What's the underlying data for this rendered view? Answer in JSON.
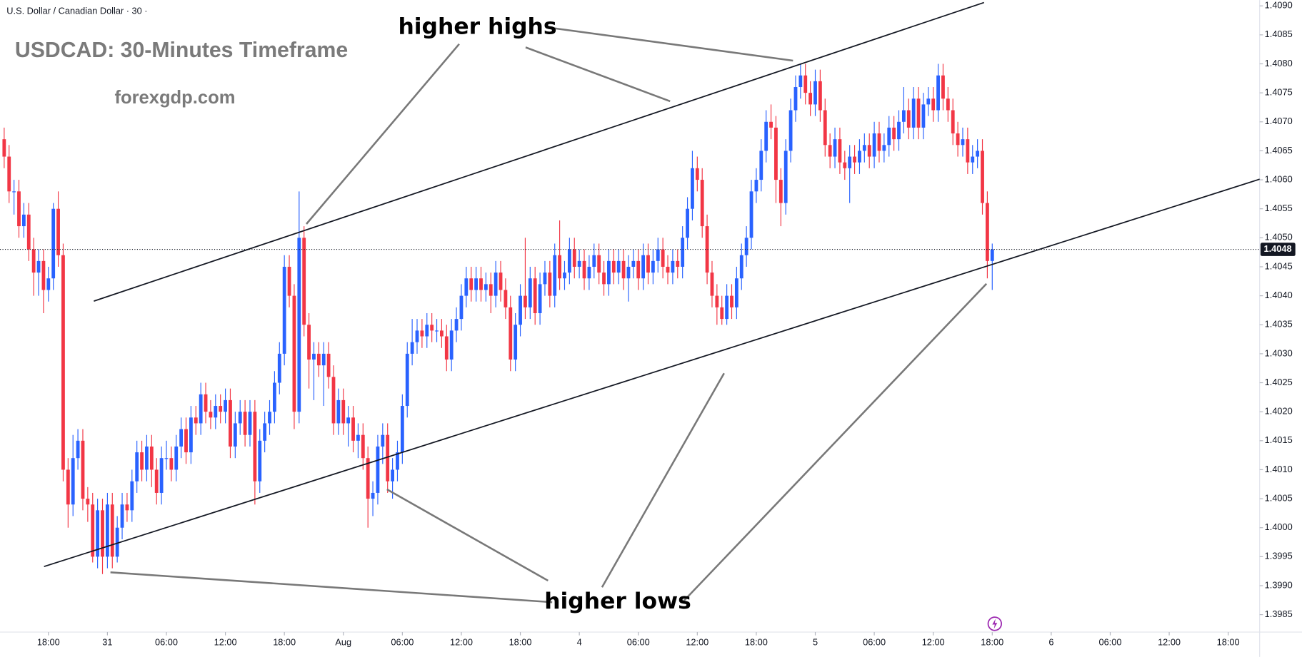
{
  "chart_data": {
    "type": "candlestick",
    "symbol_label": "U.S. Dollar / Canadian Dollar · 30 ·",
    "title": "USDCAD: 30-Minutes Timeframe",
    "subtitle": "forexgdp.com",
    "annotations": [
      "higher highs",
      "higher lows"
    ],
    "up_color": "#2962ff",
    "down_color": "#f23645",
    "grid": false,
    "last_price": 1.4048,
    "ylim": [
      1.3982,
      1.4091
    ],
    "yticks": [
      {
        "value": 1.399,
        "label": "1.3990"
      },
      1.3985,
      {
        "value": 1.4,
        "label": "1.4000"
      },
      1.3995,
      {
        "value": 1.401,
        "label": "1.4010"
      },
      1.4005,
      {
        "value": 1.402,
        "label": "1.4020"
      },
      1.4015,
      {
        "value": 1.403,
        "label": "1.4030"
      },
      1.4025,
      {
        "value": 1.404,
        "label": "1.4040"
      },
      1.4035,
      {
        "value": 1.405,
        "label": "1.4050"
      },
      1.4045,
      {
        "value": 1.406,
        "label": "1.4060"
      },
      1.4055,
      {
        "value": 1.407,
        "label": "1.4070"
      },
      1.4065,
      {
        "value": 1.408,
        "label": "1.4080"
      },
      1.4075,
      {
        "value": 1.409,
        "label": "1.4090"
      },
      1.4085
    ],
    "xlim": [
      -0.85,
      255.4
    ],
    "xticks": [
      {
        "value": 9,
        "label": "18:00"
      },
      {
        "value": 21,
        "label": "31"
      },
      {
        "value": 33,
        "label": "06:00"
      },
      {
        "value": 45,
        "label": "12:00"
      },
      {
        "value": 57,
        "label": "18:00"
      },
      {
        "value": 69,
        "label": "Aug"
      },
      {
        "value": 81,
        "label": "06:00"
      },
      {
        "value": 93,
        "label": "12:00"
      },
      {
        "value": 105,
        "label": "18:00"
      },
      {
        "value": 117,
        "label": "4"
      },
      {
        "value": 129,
        "label": "06:00"
      },
      {
        "value": 141,
        "label": "12:00"
      },
      {
        "value": 153,
        "label": "18:00"
      },
      {
        "value": 165,
        "label": "5"
      },
      {
        "value": 177,
        "label": "06:00"
      },
      {
        "value": 189,
        "label": "12:00"
      },
      {
        "value": 201,
        "label": "18:00"
      },
      {
        "value": 213,
        "label": "6"
      },
      {
        "value": 225,
        "label": "06:00"
      },
      {
        "value": 237,
        "label": "12:00"
      },
      {
        "value": 249,
        "label": "18:00"
      }
    ],
    "candles": [
      [
        1.4067,
        1.4069,
        1.4062,
        1.4064
      ],
      [
        1.4064,
        1.4066,
        1.4056,
        1.4058
      ],
      [
        1.4058,
        1.406,
        1.4054,
        1.4058
      ],
      [
        1.4058,
        1.406,
        1.405,
        1.4052
      ],
      [
        1.4052,
        1.4056,
        1.405,
        1.4054
      ],
      [
        1.4054,
        1.4056,
        1.4046,
        1.4048
      ],
      [
        1.4048,
        1.405,
        1.404,
        1.4044
      ],
      [
        1.4044,
        1.4048,
        1.404,
        1.4046
      ],
      [
        1.4046,
        1.4048,
        1.4037,
        1.4041
      ],
      [
        1.4041,
        1.4045,
        1.4039,
        1.4043
      ],
      [
        1.4043,
        1.4056,
        1.4041,
        1.4055
      ],
      [
        1.4055,
        1.4058,
        1.4045,
        1.4047
      ],
      [
        1.4047,
        1.4049,
        1.4008,
        1.401
      ],
      [
        1.401,
        1.4012,
        1.4,
        1.4004
      ],
      [
        1.4004,
        1.4016,
        1.4002,
        1.4012
      ],
      [
        1.4012,
        1.4017,
        1.401,
        1.4015
      ],
      [
        1.4015,
        1.4017,
        1.4003,
        1.4005
      ],
      [
        1.4005,
        1.4007,
        1.4001,
        1.4004
      ],
      [
        1.4004,
        1.4006,
        1.3994,
        1.3995
      ],
      [
        1.3995,
        1.4005,
        1.3993,
        1.4003
      ],
      [
        1.4003,
        1.4005,
        1.3992,
        1.3995
      ],
      [
        1.3995,
        1.4006,
        1.3993,
        1.4004
      ],
      [
        1.4004,
        1.4006,
        1.3993,
        1.3995
      ],
      [
        1.3995,
        1.4002,
        1.3994,
        1.4
      ],
      [
        1.4,
        1.4006,
        1.3998,
        1.4004
      ],
      [
        1.4004,
        1.4006,
        1.4001,
        1.4003
      ],
      [
        1.4003,
        1.401,
        1.4001,
        1.4008
      ],
      [
        1.4008,
        1.4015,
        1.4006,
        1.4013
      ],
      [
        1.4013,
        1.4015,
        1.4008,
        1.401
      ],
      [
        1.401,
        1.4016,
        1.4008,
        1.4014
      ],
      [
        1.4014,
        1.4016,
        1.4007,
        1.401
      ],
      [
        1.401,
        1.4012,
        1.4004,
        1.4006
      ],
      [
        1.4006,
        1.4014,
        1.4004,
        1.4012
      ],
      [
        1.4012,
        1.4015,
        1.401,
        1.4012
      ],
      [
        1.4012,
        1.4014,
        1.4008,
        1.401
      ],
      [
        1.401,
        1.4016,
        1.4008,
        1.4014
      ],
      [
        1.4014,
        1.4019,
        1.4012,
        1.4017
      ],
      [
        1.4017,
        1.4019,
        1.4011,
        1.4013
      ],
      [
        1.4013,
        1.4021,
        1.4011,
        1.4019
      ],
      [
        1.4019,
        1.4021,
        1.4016,
        1.4018
      ],
      [
        1.4018,
        1.4025,
        1.4016,
        1.4023
      ],
      [
        1.4023,
        1.4025,
        1.4018,
        1.402
      ],
      [
        1.402,
        1.4022,
        1.4017,
        1.4019
      ],
      [
        1.4019,
        1.4023,
        1.4017,
        1.4021
      ],
      [
        1.4021,
        1.4023,
        1.4018,
        1.402
      ],
      [
        1.402,
        1.4024,
        1.4018,
        1.4022
      ],
      [
        1.4022,
        1.4024,
        1.4012,
        1.4014
      ],
      [
        1.4014,
        1.402,
        1.4012,
        1.4018
      ],
      [
        1.4018,
        1.4022,
        1.4016,
        1.402
      ],
      [
        1.402,
        1.4022,
        1.4014,
        1.4016
      ],
      [
        1.4016,
        1.4022,
        1.4014,
        1.402
      ],
      [
        1.402,
        1.4022,
        1.4004,
        1.4008
      ],
      [
        1.4008,
        1.4017,
        1.4006,
        1.4015
      ],
      [
        1.4015,
        1.402,
        1.4013,
        1.4018
      ],
      [
        1.4018,
        1.4022,
        1.4016,
        1.402
      ],
      [
        1.402,
        1.4027,
        1.4018,
        1.4025
      ],
      [
        1.4025,
        1.4032,
        1.4023,
        1.403
      ],
      [
        1.403,
        1.4047,
        1.4028,
        1.4045
      ],
      [
        1.4045,
        1.4047,
        1.4038,
        1.404
      ],
      [
        1.404,
        1.4042,
        1.4017,
        1.402
      ],
      [
        1.402,
        1.4058,
        1.4018,
        1.405
      ],
      [
        1.405,
        1.4052,
        1.4033,
        1.4035
      ],
      [
        1.4035,
        1.4037,
        1.4024,
        1.4029
      ],
      [
        1.4029,
        1.4032,
        1.4022,
        1.403
      ],
      [
        1.403,
        1.4032,
        1.4026,
        1.4028
      ],
      [
        1.4028,
        1.4032,
        1.4021,
        1.403
      ],
      [
        1.403,
        1.4032,
        1.4024,
        1.4026
      ],
      [
        1.4026,
        1.4028,
        1.4016,
        1.4018
      ],
      [
        1.4018,
        1.4024,
        1.4016,
        1.4022
      ],
      [
        1.4022,
        1.4024,
        1.4016,
        1.4018
      ],
      [
        1.4018,
        1.4021,
        1.4014,
        1.4019
      ],
      [
        1.4019,
        1.4021,
        1.4013,
        1.4015
      ],
      [
        1.4015,
        1.4018,
        1.4012,
        1.4016
      ],
      [
        1.4016,
        1.4018,
        1.401,
        1.4012
      ],
      [
        1.4012,
        1.4014,
        1.4,
        1.4005
      ],
      [
        1.4005,
        1.4008,
        1.4002,
        1.4006
      ],
      [
        1.4006,
        1.4016,
        1.4004,
        1.4014
      ],
      [
        1.4014,
        1.4018,
        1.4011,
        1.4016
      ],
      [
        1.4016,
        1.4018,
        1.4006,
        1.4008
      ],
      [
        1.4008,
        1.4012,
        1.4005,
        1.401
      ],
      [
        1.401,
        1.4015,
        1.4008,
        1.4013
      ],
      [
        1.4013,
        1.4023,
        1.4011,
        1.4021
      ],
      [
        1.4021,
        1.4032,
        1.4019,
        1.403
      ],
      [
        1.403,
        1.4036,
        1.4028,
        1.4032
      ],
      [
        1.4032,
        1.4036,
        1.403,
        1.4034
      ],
      [
        1.4034,
        1.4036,
        1.4031,
        1.4033
      ],
      [
        1.4033,
        1.4037,
        1.4031,
        1.4035
      ],
      [
        1.4035,
        1.4037,
        1.4032,
        1.4034
      ],
      [
        1.4034,
        1.4036,
        1.4032,
        1.4034
      ],
      [
        1.4034,
        1.4036,
        1.4031,
        1.4033
      ],
      [
        1.4033,
        1.4035,
        1.4027,
        1.4029
      ],
      [
        1.4029,
        1.4036,
        1.4027,
        1.4034
      ],
      [
        1.4034,
        1.4038,
        1.4032,
        1.4036
      ],
      [
        1.4036,
        1.4042,
        1.4034,
        1.404
      ],
      [
        1.404,
        1.4045,
        1.4038,
        1.4043
      ],
      [
        1.4043,
        1.4045,
        1.4039,
        1.4041
      ],
      [
        1.4041,
        1.4045,
        1.4039,
        1.4043
      ],
      [
        1.4043,
        1.4045,
        1.4039,
        1.4041
      ],
      [
        1.4041,
        1.4044,
        1.4039,
        1.4042
      ],
      [
        1.4042,
        1.4044,
        1.4037,
        1.404
      ],
      [
        1.404,
        1.4046,
        1.4038,
        1.4044
      ],
      [
        1.4044,
        1.4046,
        1.4039,
        1.4041
      ],
      [
        1.4041,
        1.4043,
        1.4036,
        1.4038
      ],
      [
        1.4038,
        1.404,
        1.4027,
        1.4029
      ],
      [
        1.4029,
        1.4037,
        1.4027,
        1.4035
      ],
      [
        1.4035,
        1.4042,
        1.4033,
        1.404
      ],
      [
        1.404,
        1.405,
        1.4036,
        1.4038
      ],
      [
        1.4038,
        1.4045,
        1.4036,
        1.4043
      ],
      [
        1.4043,
        1.4045,
        1.4035,
        1.4037
      ],
      [
        1.4037,
        1.4044,
        1.4035,
        1.4042
      ],
      [
        1.4042,
        1.4046,
        1.404,
        1.4044
      ],
      [
        1.4044,
        1.4046,
        1.4038,
        1.404
      ],
      [
        1.404,
        1.4049,
        1.4038,
        1.4047
      ],
      [
        1.4047,
        1.4053,
        1.4041,
        1.4043
      ],
      [
        1.4043,
        1.4046,
        1.4041,
        1.4044
      ],
      [
        1.4044,
        1.405,
        1.4042,
        1.4048
      ],
      [
        1.4048,
        1.405,
        1.4043,
        1.4045
      ],
      [
        1.4045,
        1.4048,
        1.4043,
        1.4046
      ],
      [
        1.4046,
        1.4048,
        1.4041,
        1.4043
      ],
      [
        1.4043,
        1.4047,
        1.4041,
        1.4045
      ],
      [
        1.4045,
        1.4049,
        1.4043,
        1.4047
      ],
      [
        1.4047,
        1.4049,
        1.4042,
        1.4044
      ],
      [
        1.4044,
        1.4046,
        1.404,
        1.4042
      ],
      [
        1.4042,
        1.4048,
        1.404,
        1.4046
      ],
      [
        1.4046,
        1.4048,
        1.4042,
        1.4044
      ],
      [
        1.4044,
        1.4048,
        1.4042,
        1.4046
      ],
      [
        1.4046,
        1.4048,
        1.4041,
        1.4043
      ],
      [
        1.4043,
        1.4047,
        1.4039,
        1.4045
      ],
      [
        1.4045,
        1.4048,
        1.4043,
        1.4046
      ],
      [
        1.4046,
        1.4048,
        1.4041,
        1.4043
      ],
      [
        1.4043,
        1.4049,
        1.4041,
        1.4047
      ],
      [
        1.4047,
        1.4049,
        1.4042,
        1.4044
      ],
      [
        1.4044,
        1.4048,
        1.4042,
        1.4046
      ],
      [
        1.4046,
        1.405,
        1.4044,
        1.4048
      ],
      [
        1.4048,
        1.405,
        1.4043,
        1.4045
      ],
      [
        1.4045,
        1.4047,
        1.4042,
        1.4044
      ],
      [
        1.4044,
        1.4048,
        1.4042,
        1.4046
      ],
      [
        1.4046,
        1.4048,
        1.4043,
        1.4045
      ],
      [
        1.4045,
        1.4052,
        1.4043,
        1.405
      ],
      [
        1.405,
        1.4057,
        1.4048,
        1.4055
      ],
      [
        1.4055,
        1.4065,
        1.4053,
        1.4062
      ],
      [
        1.4062,
        1.4064,
        1.4058,
        1.406
      ],
      [
        1.406,
        1.4062,
        1.405,
        1.4052
      ],
      [
        1.4052,
        1.4054,
        1.4042,
        1.4044
      ],
      [
        1.4044,
        1.4046,
        1.4038,
        1.404
      ],
      [
        1.404,
        1.4042,
        1.4035,
        1.4038
      ],
      [
        1.4038,
        1.404,
        1.4035,
        1.4036
      ],
      [
        1.4036,
        1.4042,
        1.4035,
        1.404
      ],
      [
        1.404,
        1.4042,
        1.4036,
        1.4038
      ],
      [
        1.4038,
        1.4045,
        1.4036,
        1.4043
      ],
      [
        1.4043,
        1.4049,
        1.4041,
        1.4047
      ],
      [
        1.4047,
        1.4052,
        1.4045,
        1.405
      ],
      [
        1.405,
        1.406,
        1.4048,
        1.4058
      ],
      [
        1.4058,
        1.4062,
        1.4056,
        1.406
      ],
      [
        1.406,
        1.4067,
        1.4058,
        1.4065
      ],
      [
        1.4065,
        1.4072,
        1.4063,
        1.407
      ],
      [
        1.407,
        1.4073,
        1.4067,
        1.4069
      ],
      [
        1.4069,
        1.4071,
        1.4056,
        1.406
      ],
      [
        1.406,
        1.4062,
        1.4052,
        1.4056
      ],
      [
        1.4056,
        1.4067,
        1.4054,
        1.4065
      ],
      [
        1.4065,
        1.4074,
        1.4063,
        1.4072
      ],
      [
        1.4072,
        1.4078,
        1.407,
        1.4076
      ],
      [
        1.4076,
        1.408,
        1.4074,
        1.4078
      ],
      [
        1.4078,
        1.408,
        1.4073,
        1.4075
      ],
      [
        1.4075,
        1.4077,
        1.4071,
        1.4073
      ],
      [
        1.4073,
        1.4079,
        1.4071,
        1.4077
      ],
      [
        1.4077,
        1.4079,
        1.407,
        1.4072
      ],
      [
        1.4072,
        1.4074,
        1.4064,
        1.4066
      ],
      [
        1.4066,
        1.4068,
        1.4062,
        1.4064
      ],
      [
        1.4064,
        1.4069,
        1.4062,
        1.4067
      ],
      [
        1.4067,
        1.4069,
        1.4061,
        1.4063
      ],
      [
        1.4063,
        1.4065,
        1.406,
        1.4062
      ],
      [
        1.4062,
        1.4066,
        1.4056,
        1.4064
      ],
      [
        1.4064,
        1.4066,
        1.4061,
        1.4063
      ],
      [
        1.4063,
        1.4067,
        1.4061,
        1.4065
      ],
      [
        1.4065,
        1.4068,
        1.4063,
        1.4066
      ],
      [
        1.4066,
        1.4068,
        1.4062,
        1.4064
      ],
      [
        1.4064,
        1.407,
        1.4062,
        1.4068
      ],
      [
        1.4068,
        1.407,
        1.4063,
        1.4065
      ],
      [
        1.4065,
        1.4068,
        1.4063,
        1.4066
      ],
      [
        1.4066,
        1.4071,
        1.4064,
        1.4069
      ],
      [
        1.4069,
        1.4071,
        1.4065,
        1.4067
      ],
      [
        1.4067,
        1.4072,
        1.4065,
        1.407
      ],
      [
        1.407,
        1.4076,
        1.4068,
        1.4072
      ],
      [
        1.4072,
        1.4074,
        1.4067,
        1.4069
      ],
      [
        1.4069,
        1.4076,
        1.4067,
        1.4074
      ],
      [
        1.4074,
        1.4076,
        1.4067,
        1.4069
      ],
      [
        1.4069,
        1.4075,
        1.4067,
        1.4073
      ],
      [
        1.4073,
        1.4076,
        1.4071,
        1.4074
      ],
      [
        1.4074,
        1.4076,
        1.407,
        1.4072
      ],
      [
        1.4072,
        1.408,
        1.407,
        1.4078
      ],
      [
        1.4078,
        1.408,
        1.4072,
        1.4074
      ],
      [
        1.4074,
        1.4076,
        1.407,
        1.4072
      ],
      [
        1.4072,
        1.4074,
        1.4066,
        1.4068
      ],
      [
        1.4068,
        1.407,
        1.4064,
        1.4066
      ],
      [
        1.4066,
        1.4069,
        1.4064,
        1.4067
      ],
      [
        1.4067,
        1.4069,
        1.4061,
        1.4063
      ],
      [
        1.4063,
        1.4066,
        1.4061,
        1.4064
      ],
      [
        1.4064,
        1.4067,
        1.4062,
        1.4065
      ],
      [
        1.4065,
        1.4067,
        1.4054,
        1.4056
      ],
      [
        1.4056,
        1.4058,
        1.4043,
        1.4046
      ],
      [
        1.4046,
        1.4049,
        1.4041,
        1.4048
      ]
    ]
  }
}
